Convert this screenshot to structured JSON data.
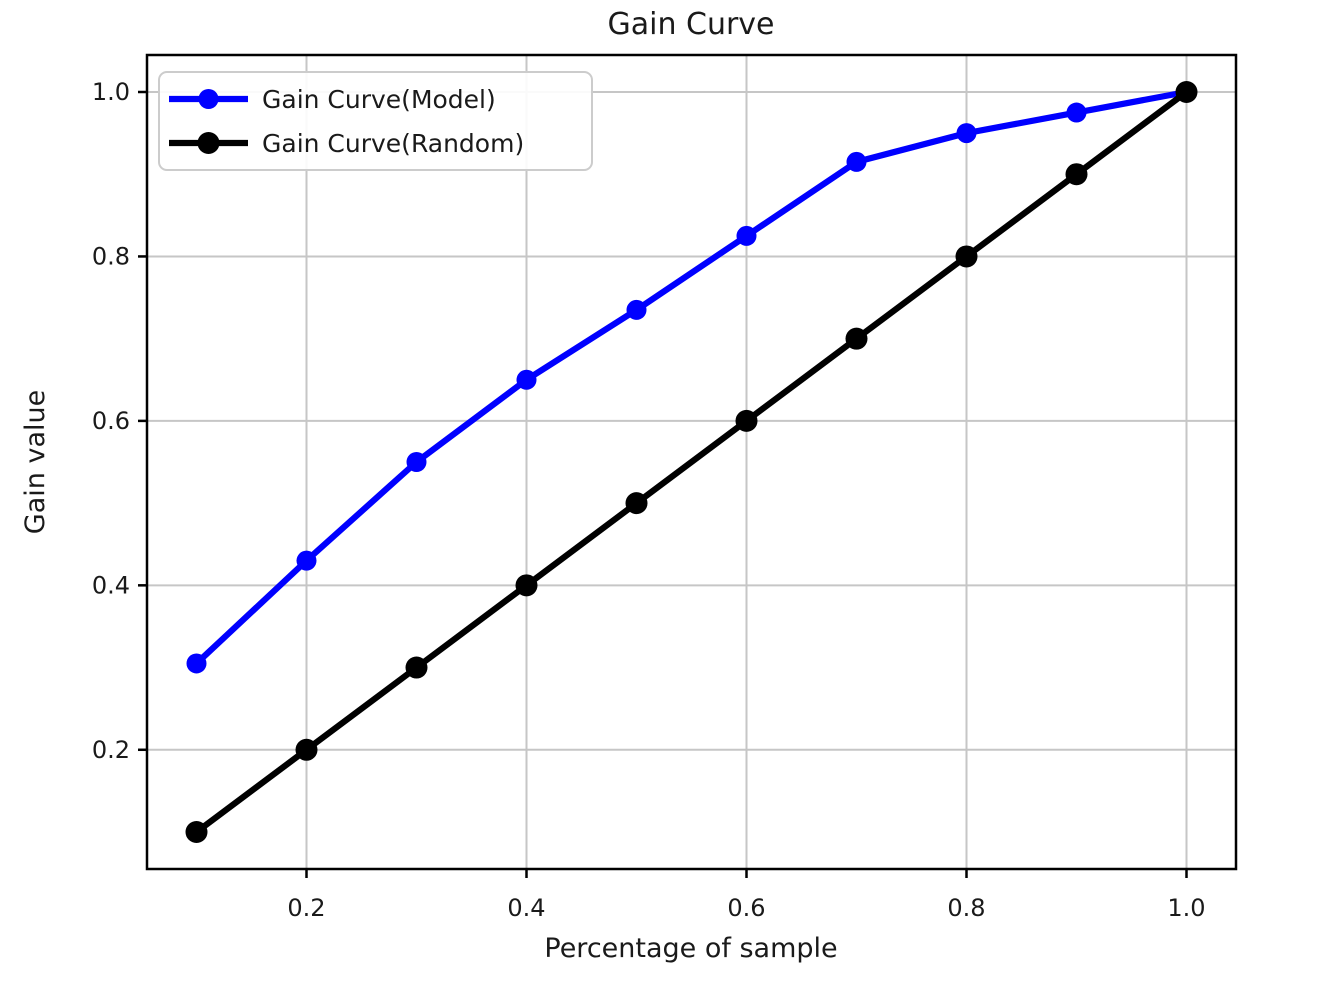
{
  "chart_data": {
    "type": "line",
    "title": "Gain Curve",
    "xlabel": "Percentage of sample",
    "ylabel": "Gain value",
    "x": [
      0.1,
      0.2,
      0.3,
      0.4,
      0.5,
      0.6,
      0.7,
      0.8,
      0.9,
      1.0
    ],
    "series": [
      {
        "name": "Gain Curve(Model)",
        "color": "#0000ff",
        "marker": "circle",
        "values": [
          0.305,
          0.43,
          0.55,
          0.65,
          0.735,
          0.825,
          0.915,
          0.95,
          0.975,
          1.0
        ]
      },
      {
        "name": "Gain Curve(Random)",
        "color": "#000000",
        "marker": "circle",
        "values": [
          0.1,
          0.2,
          0.3,
          0.4,
          0.5,
          0.6,
          0.7,
          0.8,
          0.9,
          1.0
        ]
      }
    ],
    "xticks": [
      0.2,
      0.4,
      0.6,
      0.8,
      1.0
    ],
    "yticks": [
      0.2,
      0.4,
      0.6,
      0.8,
      1.0
    ],
    "xlim": [
      0.055,
      1.045
    ],
    "ylim": [
      0.055,
      1.045
    ],
    "grid": true,
    "legend_position": "upper left",
    "colors": {
      "grid": "#c6c6c6",
      "axis": "#000000",
      "background": "#ffffff",
      "legend_border": "#cccccc"
    }
  }
}
